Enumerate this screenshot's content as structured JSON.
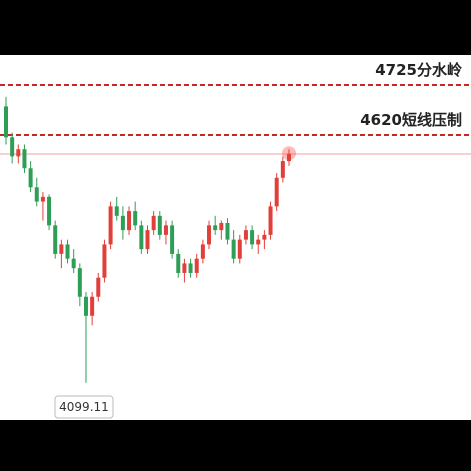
{
  "chart_data": {
    "type": "candlestick",
    "open": [
      4680,
      4615,
      4575,
      4590,
      4550,
      4510,
      4480,
      4490,
      4430,
      4370,
      4390,
      4360,
      4340,
      4280,
      4240,
      4280,
      4320,
      4390,
      4470,
      4450,
      4420,
      4460,
      4430,
      4380,
      4420,
      4450,
      4410,
      4430,
      4370,
      4330,
      4350,
      4330,
      4360,
      4390,
      4430,
      4420,
      4435,
      4400,
      4360,
      4400,
      4420,
      4390,
      4400,
      4410,
      4470,
      4530,
      4565
    ],
    "high": [
      4700,
      4625,
      4600,
      4600,
      4565,
      4530,
      4500,
      4495,
      4440,
      4400,
      4400,
      4380,
      4350,
      4290,
      4290,
      4330,
      4400,
      4480,
      4490,
      4470,
      4470,
      4480,
      4440,
      4430,
      4460,
      4460,
      4440,
      4440,
      4380,
      4360,
      4360,
      4370,
      4400,
      4440,
      4450,
      4440,
      4445,
      4420,
      4410,
      4430,
      4430,
      4410,
      4420,
      4480,
      4540,
      4575,
      4590
    ],
    "low": [
      4600,
      4560,
      4560,
      4540,
      4500,
      4470,
      4440,
      4420,
      4360,
      4340,
      4350,
      4330,
      4260,
      4099.11,
      4220,
      4270,
      4310,
      4380,
      4440,
      4400,
      4410,
      4420,
      4370,
      4370,
      4410,
      4400,
      4390,
      4360,
      4320,
      4310,
      4320,
      4320,
      4350,
      4380,
      4410,
      4400,
      4390,
      4350,
      4350,
      4390,
      4380,
      4370,
      4380,
      4400,
      4460,
      4520,
      4555
    ],
    "close": [
      4615,
      4575,
      4590,
      4550,
      4510,
      4480,
      4490,
      4430,
      4370,
      4390,
      4360,
      4340,
      4280,
      4240,
      4280,
      4320,
      4390,
      4470,
      4450,
      4420,
      4460,
      4430,
      4380,
      4420,
      4450,
      4410,
      4430,
      4370,
      4330,
      4350,
      4330,
      4360,
      4390,
      4430,
      4420,
      4435,
      4400,
      4360,
      4400,
      4420,
      4390,
      4400,
      4410,
      4470,
      4530,
      4565,
      4580
    ],
    "up_color": "#e0403a",
    "down_color": "#2e9e56",
    "ylim": [
      4021,
      4788
    ],
    "levels": [
      {
        "value": 4725,
        "label": "4725分水岭"
      },
      {
        "value": 4620,
        "label": "4620短线压制"
      }
    ],
    "level_color": "#c62828",
    "min_index": 13
  }
}
